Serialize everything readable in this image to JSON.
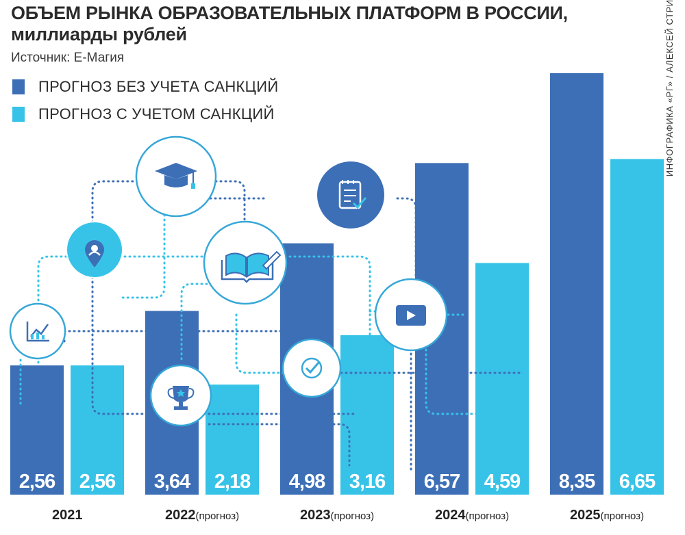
{
  "header": {
    "title_line1": "ОБЪЕМ РЫНКА ОБРАЗОВАТЕЛЬНЫХ ПЛАТФОРМ В РОССИИ,",
    "title_line2": "миллиарды рублей",
    "source": "Источник: Е-Магия",
    "credit": "ИНФОГРАФИКА «РГ» / АЛЕКСЕЙ СТРИГИН / АННА ДУРОВА"
  },
  "colors": {
    "dark_blue": "#3d6fb6",
    "light_blue": "#37c3e8",
    "circle_stroke": "#37a7d8",
    "dots": "#3d6fb6"
  },
  "icons": [
    "chart-growth-icon",
    "user-pin-icon",
    "graduation-cap-icon",
    "open-book-icon",
    "checklist-icon",
    "check-circle-icon",
    "play-video-icon",
    "trophy-icon"
  ],
  "chart_data": {
    "type": "bar",
    "title": "ОБЪЕМ РЫНКА ОБРАЗОВАТЕЛЬНЫХ ПЛАТФОРМ В РОССИИ, миллиарды рублей",
    "categories": [
      {
        "year": "2021",
        "note": ""
      },
      {
        "year": "2022",
        "note": "(прогноз)"
      },
      {
        "year": "2023",
        "note": "(прогноз)"
      },
      {
        "year": "2024",
        "note": "(прогноз)"
      },
      {
        "year": "2025",
        "note": "(прогноз)"
      }
    ],
    "series": [
      {
        "name": "ПРОГНОЗ БЕЗ УЧЕТА САНКЦИЙ",
        "color": "#3d6fb6",
        "values": [
          2.56,
          3.64,
          4.98,
          6.57,
          8.35
        ],
        "labels": [
          "2,56",
          "3,64",
          "4,98",
          "6,57",
          "8,35"
        ]
      },
      {
        "name": "ПРОГНОЗ С УЧЕТОМ САНКЦИЙ",
        "color": "#37c3e8",
        "values": [
          2.56,
          2.18,
          3.16,
          4.59,
          6.65
        ],
        "labels": [
          "2,56",
          "2,18",
          "3,16",
          "4,59",
          "6,65"
        ]
      }
    ],
    "xlabel": "",
    "ylabel": "",
    "ylim": [
      0,
      8.35
    ],
    "grid": false,
    "legend": "top-left"
  }
}
